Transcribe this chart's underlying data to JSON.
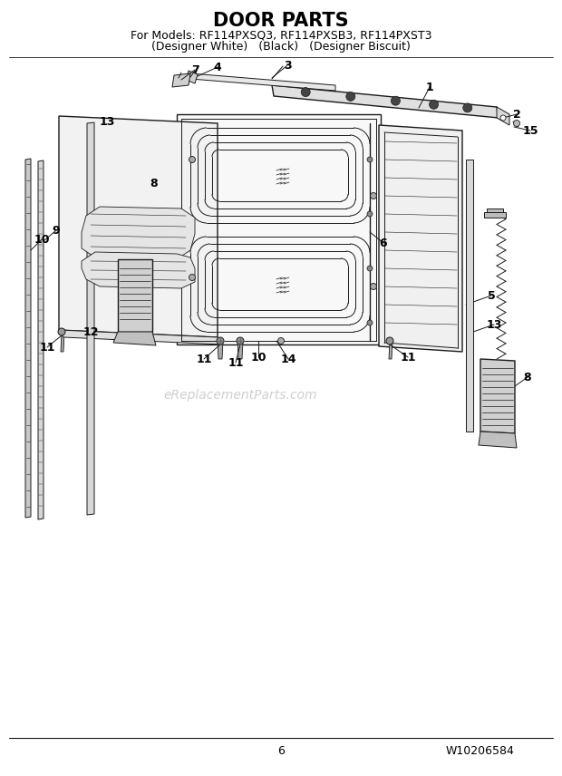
{
  "title": "DOOR PARTS",
  "subtitle_line1": "For Models: RF114PXSQ3, RF114PXSB3, RF114PXST3",
  "subtitle_line2": "(Designer White)   (Black)   (Designer Biscuit)",
  "page_number": "6",
  "part_number": "W10206584",
  "watermark": "eReplacementParts.com",
  "bg_color": "#ffffff",
  "line_color": "#1a1a1a",
  "label_color": "#000000",
  "watermark_color": "#bbbbbb",
  "title_fontsize": 15,
  "subtitle_fontsize": 9,
  "label_fontsize": 9,
  "footer_fontsize": 9
}
